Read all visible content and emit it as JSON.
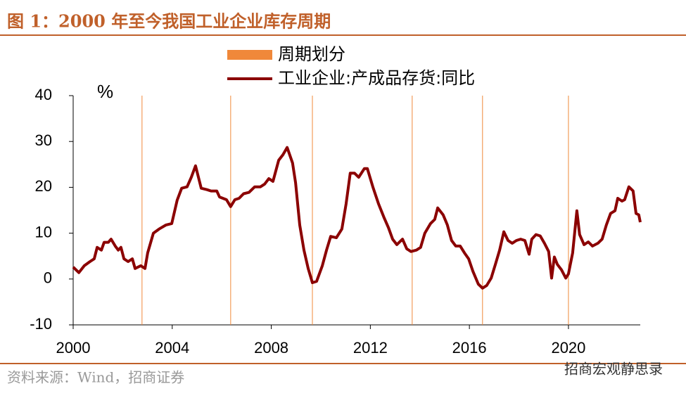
{
  "chart_data": {
    "type": "line",
    "title": "图 1：2000 年至今我国工业企业库存周期",
    "y_unit": "%",
    "source": "资料来源：Wind，招商证券",
    "watermark": "招商宏观静思录",
    "xlim": [
      2000,
      2022.9
    ],
    "xticks": [
      2000,
      2004,
      2008,
      2012,
      2016,
      2020
    ],
    "ylim": [
      -10,
      40
    ],
    "yticks": [
      -10,
      0,
      10,
      20,
      30,
      40
    ],
    "grid": false,
    "series": [
      {
        "name": "周期划分",
        "color": "#f0883a",
        "type": "vline",
        "x": [
          2002.78,
          2006.36,
          2009.66,
          2013.69,
          2016.53,
          2020.0
        ]
      },
      {
        "name": "工业企业:产成品存货:同比",
        "color": "#8b0000",
        "type": "line",
        "x": [
          2000.0,
          2000.23,
          2000.45,
          2000.68,
          2000.85,
          2000.97,
          2001.14,
          2001.25,
          2001.42,
          2001.53,
          2001.7,
          2001.82,
          2001.93,
          2002.05,
          2002.22,
          2002.39,
          2002.5,
          2002.73,
          2002.9,
          2003.01,
          2003.24,
          2003.47,
          2003.75,
          2003.98,
          2004.2,
          2004.38,
          2004.6,
          2004.77,
          2004.94,
          2005.17,
          2005.4,
          2005.57,
          2005.8,
          2005.91,
          2006.19,
          2006.36,
          2006.53,
          2006.7,
          2006.88,
          2007.1,
          2007.33,
          2007.56,
          2007.73,
          2007.9,
          2008.07,
          2008.3,
          2008.47,
          2008.64,
          2008.86,
          2008.98,
          2009.15,
          2009.32,
          2009.49,
          2009.66,
          2009.83,
          2010.06,
          2010.23,
          2010.4,
          2010.63,
          2010.85,
          2011.02,
          2011.19,
          2011.36,
          2011.53,
          2011.76,
          2011.88,
          2012.1,
          2012.33,
          2012.56,
          2012.73,
          2012.9,
          2013.07,
          2013.3,
          2013.47,
          2013.64,
          2013.86,
          2014.03,
          2014.2,
          2014.43,
          2014.6,
          2014.72,
          2014.94,
          2015.11,
          2015.28,
          2015.45,
          2015.63,
          2015.8,
          2015.97,
          2016.14,
          2016.36,
          2016.53,
          2016.7,
          2016.88,
          2017.05,
          2017.22,
          2017.39,
          2017.56,
          2017.73,
          2017.9,
          2018.07,
          2018.24,
          2018.41,
          2018.52,
          2018.69,
          2018.86,
          2019.03,
          2019.2,
          2019.32,
          2019.43,
          2019.55,
          2019.72,
          2019.89,
          2020.0,
          2020.17,
          2020.34,
          2020.45,
          2020.63,
          2020.8,
          2020.97,
          2021.19,
          2021.36,
          2021.53,
          2021.7,
          2021.88,
          2021.99,
          2022.16,
          2022.27,
          2022.44,
          2022.61,
          2022.73,
          2022.84,
          2022.9
        ],
        "values": [
          2.6,
          1.4,
          2.9,
          3.8,
          4.4,
          6.9,
          6.3,
          8,
          8,
          8.7,
          7.2,
          6.3,
          6.9,
          4.4,
          3.8,
          4.4,
          2.3,
          2.9,
          2.3,
          5.7,
          10,
          10.9,
          11.8,
          12.1,
          17.2,
          19.8,
          20.1,
          22.2,
          24.7,
          19.8,
          19.5,
          19.2,
          19.2,
          17.9,
          17.3,
          15.8,
          17.3,
          17.6,
          18.6,
          18.9,
          20.1,
          20.1,
          20.7,
          21.9,
          21.3,
          25.9,
          27.1,
          28.7,
          25.3,
          21,
          11.8,
          6.3,
          2.3,
          -0.8,
          -0.5,
          2.9,
          6.3,
          9.3,
          9,
          10.9,
          16.4,
          23.1,
          23.1,
          22.2,
          24.1,
          24.1,
          20.1,
          16.4,
          13.3,
          11.2,
          8.7,
          7.5,
          8.7,
          6.6,
          6,
          6.3,
          6.9,
          10,
          12.1,
          13,
          15.5,
          14,
          11.8,
          8.4,
          7.2,
          7.2,
          5.7,
          4.4,
          1.7,
          -1.1,
          -2,
          -1.4,
          0.2,
          3.2,
          6.3,
          10.3,
          8.4,
          7.8,
          8.4,
          8.7,
          8.4,
          5.4,
          8.7,
          9.7,
          9.4,
          7.8,
          6,
          0.2,
          4.8,
          3.2,
          2,
          0.2,
          1.1,
          5.7,
          14.9,
          9.7,
          7.5,
          8.1,
          7.2,
          7.8,
          8.7,
          11.8,
          14.3,
          14.9,
          17.6,
          17,
          17.3,
          20.1,
          19.2,
          14.3,
          14,
          12.4
        ]
      }
    ]
  }
}
